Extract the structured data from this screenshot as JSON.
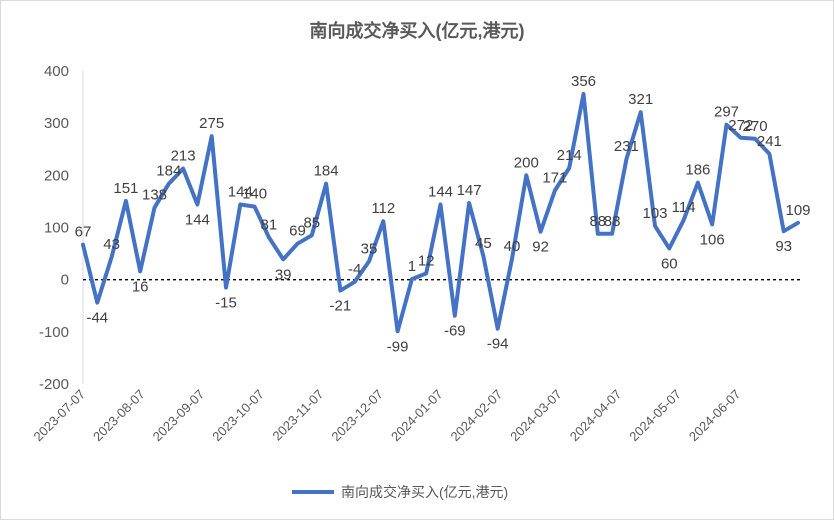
{
  "chart_data": {
    "type": "line",
    "title": "南向成交净买入(亿元,港元)",
    "xlabel": "",
    "ylabel": "",
    "ylim": [
      -200,
      400
    ],
    "yticks": [
      -200,
      -100,
      0,
      100,
      200,
      300,
      400
    ],
    "grid": false,
    "legend_position": "bottom",
    "x_tick_labels": [
      "2023-07-07",
      "2023-08-07",
      "2023-09-07",
      "2023-10-07",
      "2023-11-07",
      "2023-12-07",
      "2024-01-07",
      "2024-02-07",
      "2024-03-07",
      "2024-04-07",
      "2024-05-07",
      "2024-06-07"
    ],
    "series": [
      {
        "name": "南向成交净买入(亿元,港元)",
        "color": "#4472c4",
        "values": [
          67,
          -44,
          43,
          151,
          16,
          138,
          184,
          213,
          144,
          275,
          -15,
          144,
          140,
          81,
          39,
          69,
          85,
          184,
          -21,
          -4,
          35,
          112,
          -99,
          1,
          12,
          144,
          -69,
          147,
          45,
          -94,
          40,
          200,
          92,
          171,
          214,
          356,
          88,
          88,
          231,
          321,
          103,
          60,
          114,
          186,
          106,
          297,
          272,
          270,
          241,
          93,
          109
        ],
        "labels": [
          "67",
          "-44",
          "43",
          "151",
          "16",
          "138",
          "184",
          "213",
          "144",
          "275",
          "-15",
          "144",
          "140",
          "81",
          "39",
          "69",
          "85",
          "184",
          "-21",
          "-4",
          "35",
          "112",
          "-99",
          "1",
          "12",
          "144",
          "-69",
          "147",
          "45",
          "-94",
          "40",
          "200",
          "92",
          "171",
          "214",
          "356",
          "88",
          "88",
          "231",
          "321",
          "103",
          "60",
          "114",
          "186",
          "106",
          "297",
          "272",
          "270",
          "241",
          "93",
          "109"
        ]
      }
    ]
  }
}
